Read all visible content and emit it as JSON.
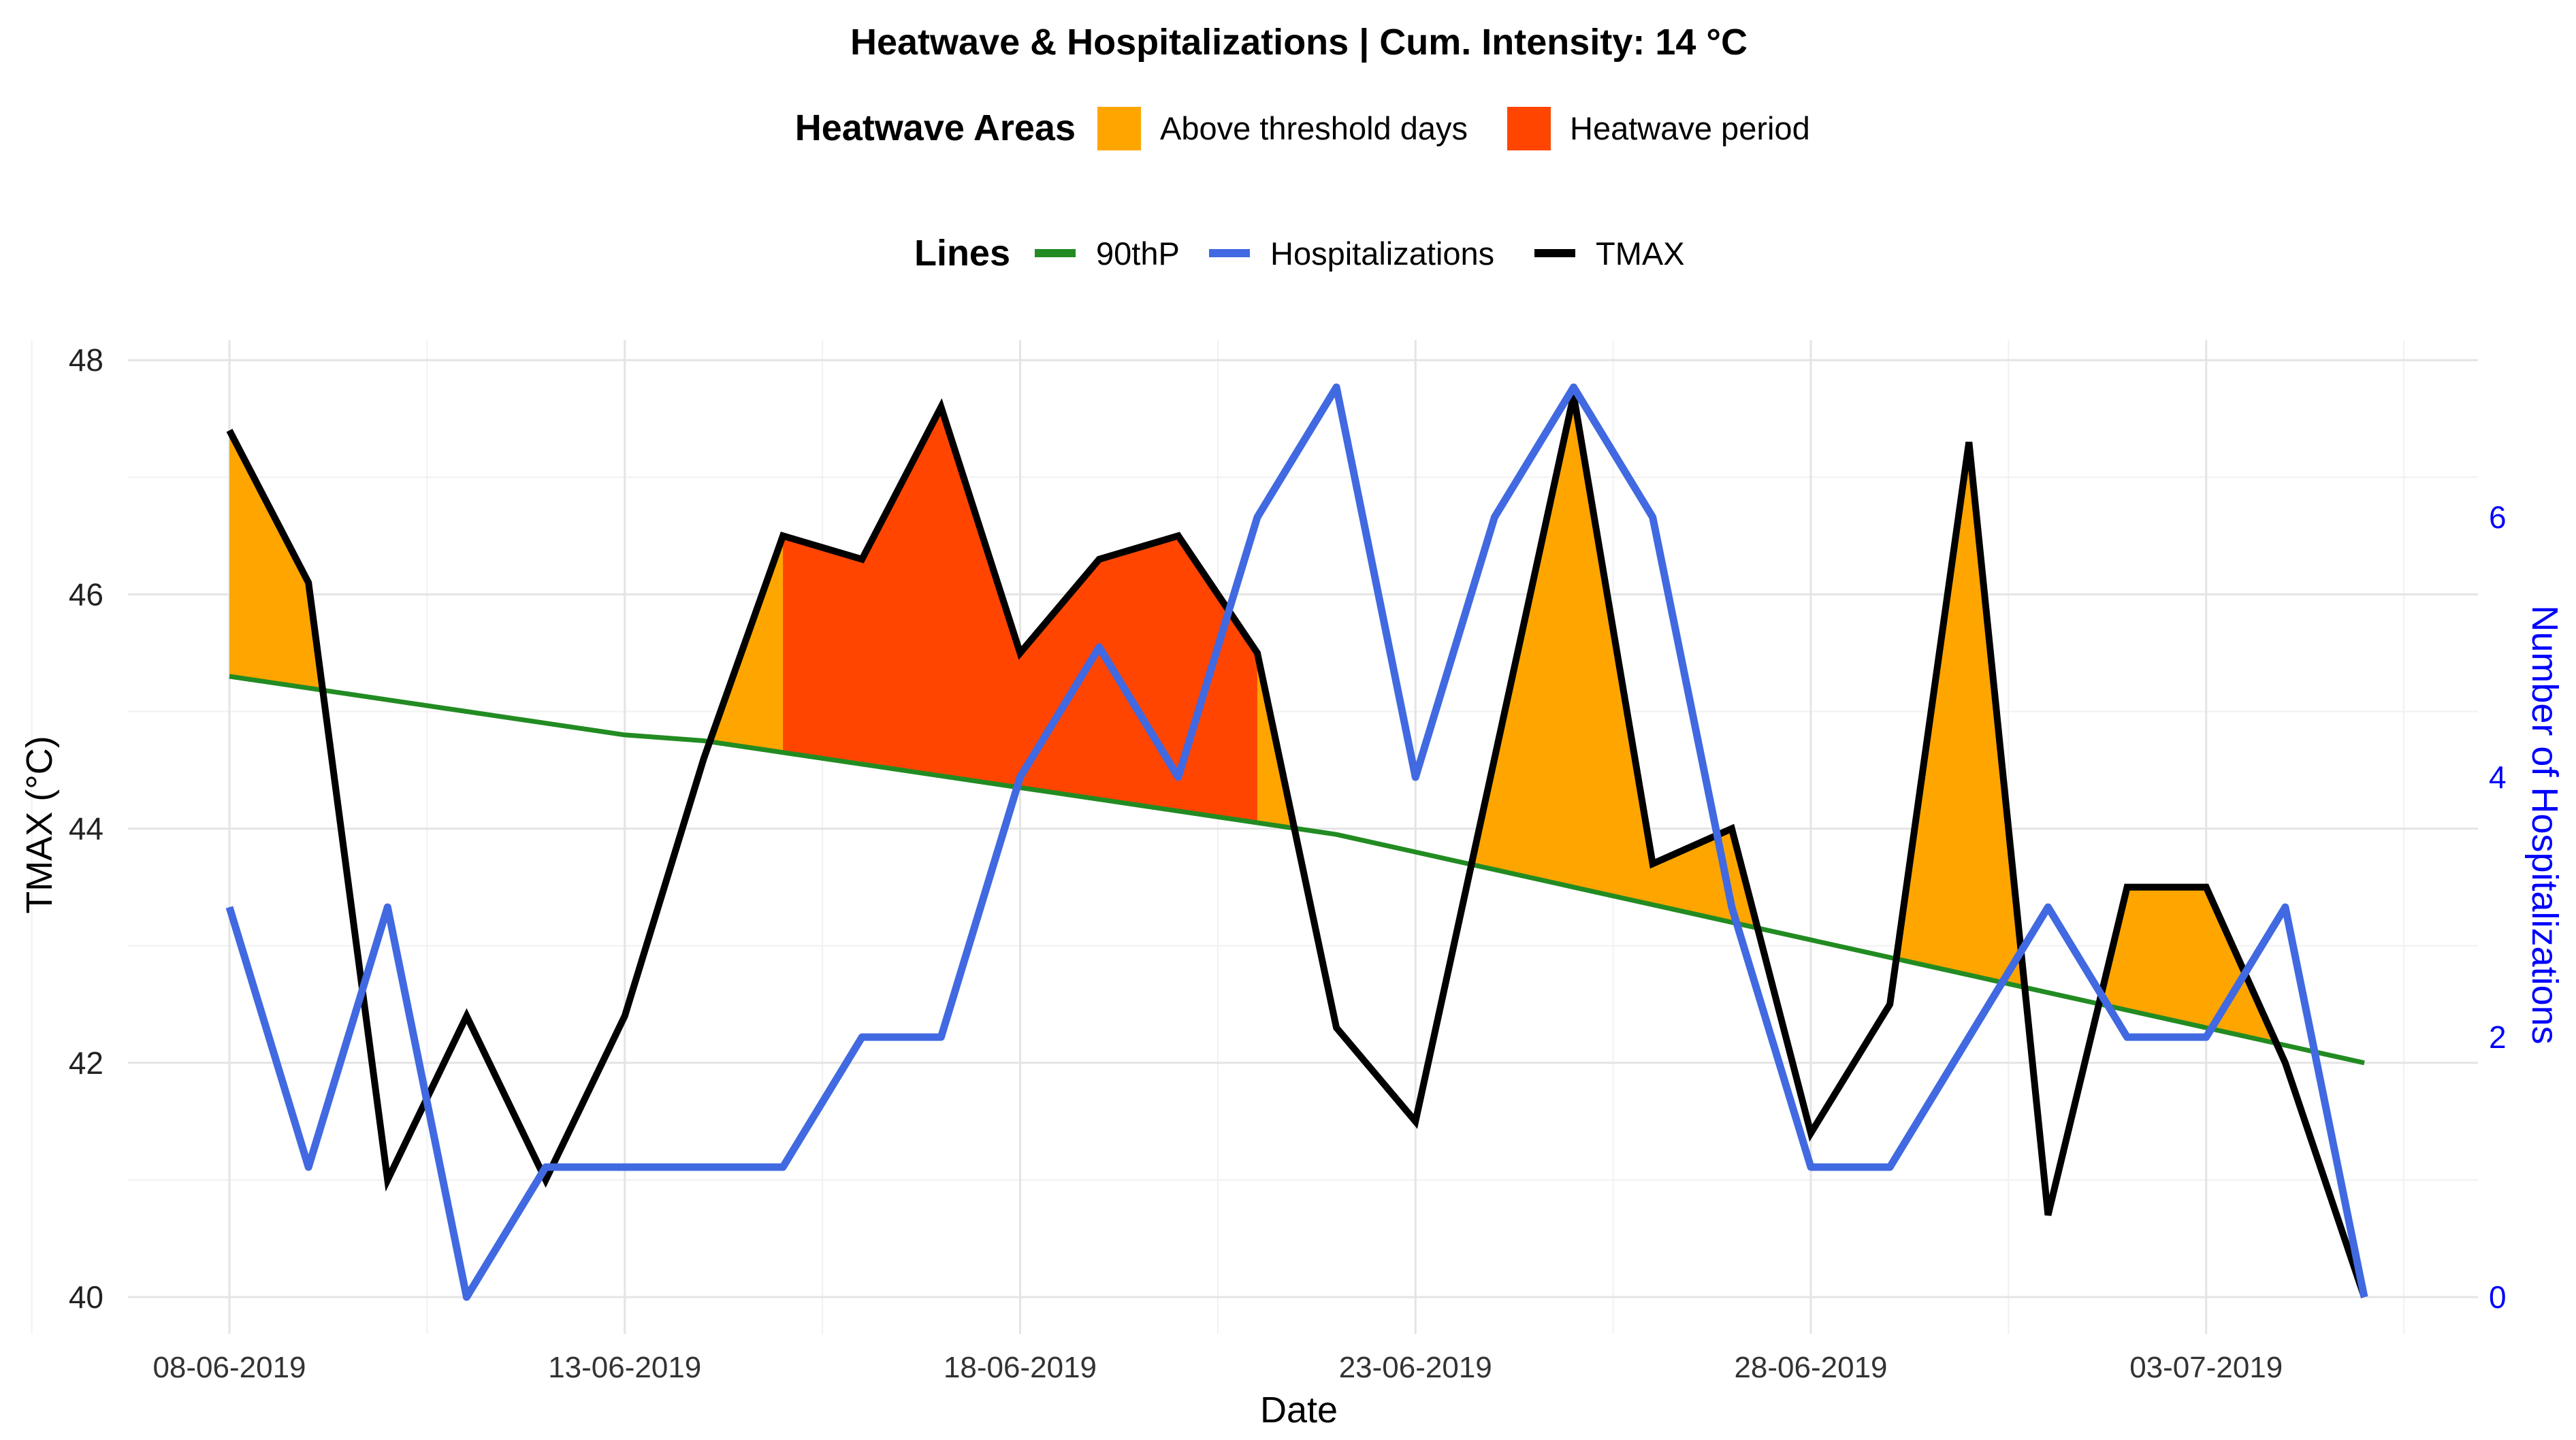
{
  "chart_data": {
    "type": "line",
    "title": "Heatwave & Hospitalizations | Cum. Intensity: 14 °C",
    "xlabel": "Date",
    "ylabel": "TMAX (°C)",
    "y2label": "Number of Hospitalizations",
    "ylim": [
      40,
      48
    ],
    "y2lim": [
      0,
      7.2
    ],
    "yticks": [
      "40",
      "42",
      "44",
      "46",
      "48"
    ],
    "y2ticks": [
      "0",
      "2",
      "4",
      "6"
    ],
    "xticks": [
      "08-06-2019",
      "13-06-2019",
      "18-06-2019",
      "23-06-2019",
      "28-06-2019",
      "03-07-2019"
    ],
    "grid": true,
    "legend_placement": "top",
    "area_legend": {
      "title": "Heatwave Areas",
      "items": [
        {
          "label": "Above threshold days",
          "color": "#FFA500"
        },
        {
          "label": "Heatwave period",
          "color": "#FF4500"
        }
      ]
    },
    "line_legend": {
      "title": "Lines",
      "items": [
        {
          "label": "90thP",
          "color": "#228B22"
        },
        {
          "label": "Hospitalizations",
          "color": "#4169E1"
        },
        {
          "label": "TMAX",
          "color": "#000000"
        }
      ]
    },
    "dates": [
      "08-06-2019",
      "09-06-2019",
      "10-06-2019",
      "11-06-2019",
      "12-06-2019",
      "13-06-2019",
      "14-06-2019",
      "15-06-2019",
      "16-06-2019",
      "17-06-2019",
      "18-06-2019",
      "19-06-2019",
      "20-06-2019",
      "21-06-2019",
      "22-06-2019",
      "23-06-2019",
      "24-06-2019",
      "25-06-2019",
      "26-06-2019",
      "27-06-2019",
      "28-06-2019",
      "29-06-2019",
      "30-06-2019",
      "01-07-2019",
      "02-07-2019",
      "03-07-2019",
      "04-07-2019",
      "05-07-2019"
    ],
    "series": [
      {
        "name": "TMAX",
        "axis": "left",
        "color": "#000000",
        "values": [
          47.4,
          46.1,
          41.0,
          42.4,
          41.0,
          42.4,
          44.6,
          46.5,
          46.3,
          47.6,
          45.5,
          46.3,
          46.5,
          45.5,
          42.3,
          41.5,
          44.6,
          47.7,
          43.7,
          44.0,
          41.4,
          42.5,
          47.3,
          40.7,
          43.5,
          43.5,
          42.0,
          40.0
        ]
      },
      {
        "name": "90thP",
        "axis": "left",
        "color": "#228B22",
        "values": [
          45.3,
          45.2,
          45.1,
          45.0,
          44.9,
          44.8,
          44.75,
          44.65,
          44.55,
          44.45,
          44.35,
          44.25,
          44.15,
          44.05,
          43.95,
          43.8,
          43.65,
          43.5,
          43.35,
          43.2,
          43.05,
          42.9,
          42.75,
          42.6,
          42.45,
          42.3,
          42.15,
          42.0
        ]
      },
      {
        "name": "Hospitalizations",
        "axis": "right",
        "color": "#4169E1",
        "values": [
          3,
          1,
          3,
          0,
          1,
          1,
          1,
          1,
          2,
          2,
          4,
          5,
          4,
          6,
          7,
          4,
          6,
          7,
          6,
          3,
          1,
          1,
          2,
          3,
          2,
          2,
          3,
          0
        ]
      }
    ],
    "heatwave_period": [
      "15-06-2019",
      "21-06-2019"
    ]
  }
}
